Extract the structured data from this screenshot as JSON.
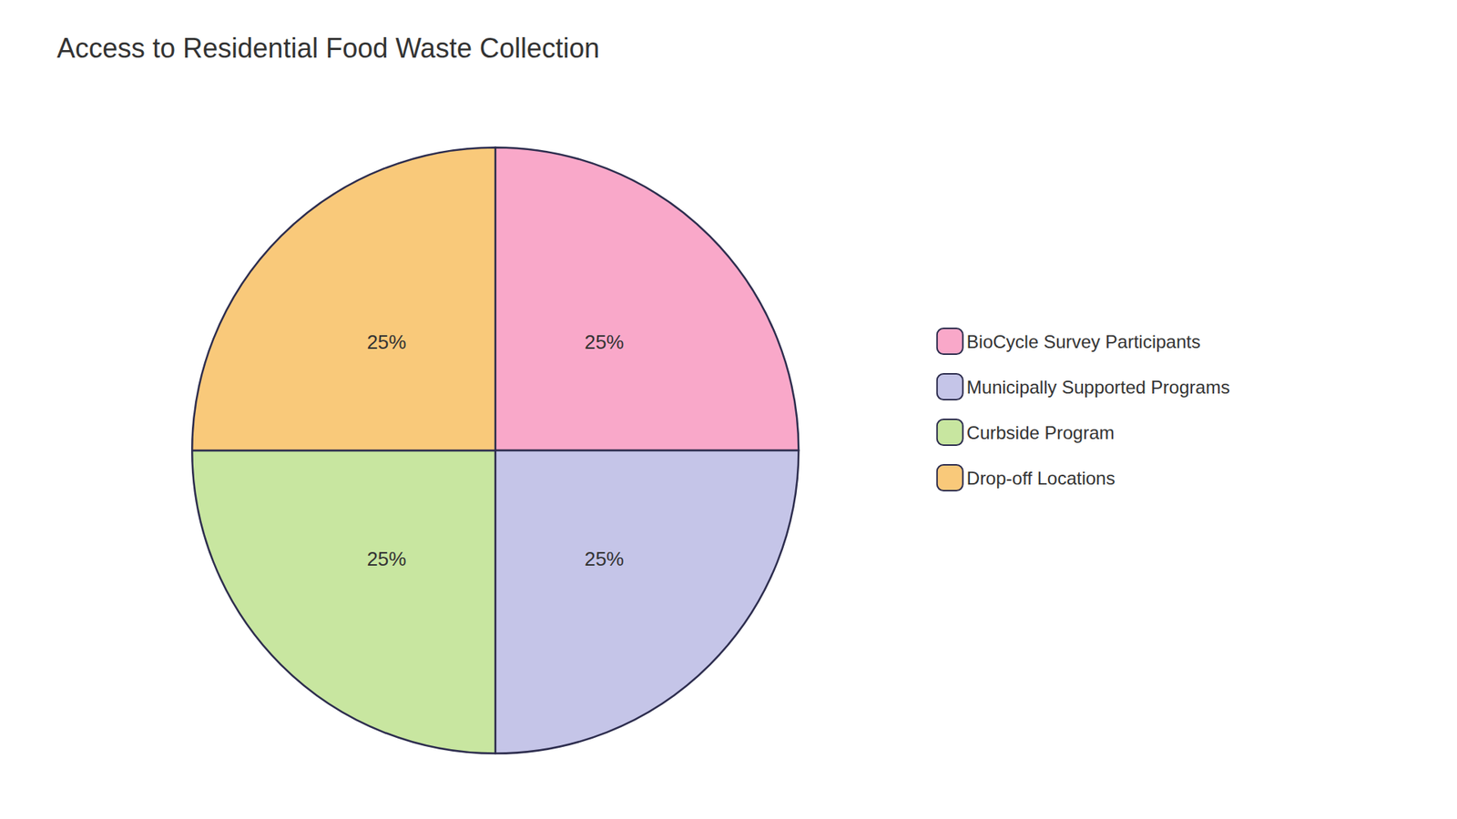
{
  "chart_data": {
    "type": "pie",
    "title": "Access to Residential Food Waste Collection",
    "categories": [
      "BioCycle Survey Participants",
      "Municipally Supported Programs",
      "Curbside Program",
      "Drop-off Locations"
    ],
    "values": [
      25,
      25,
      25,
      25
    ],
    "value_labels": [
      "25%",
      "25%",
      "25%",
      "25%"
    ],
    "colors": [
      "#F9A8C9",
      "#C5C5E8",
      "#C8E6A0",
      "#F9C97A"
    ],
    "data_labels": true,
    "legend": "right"
  }
}
